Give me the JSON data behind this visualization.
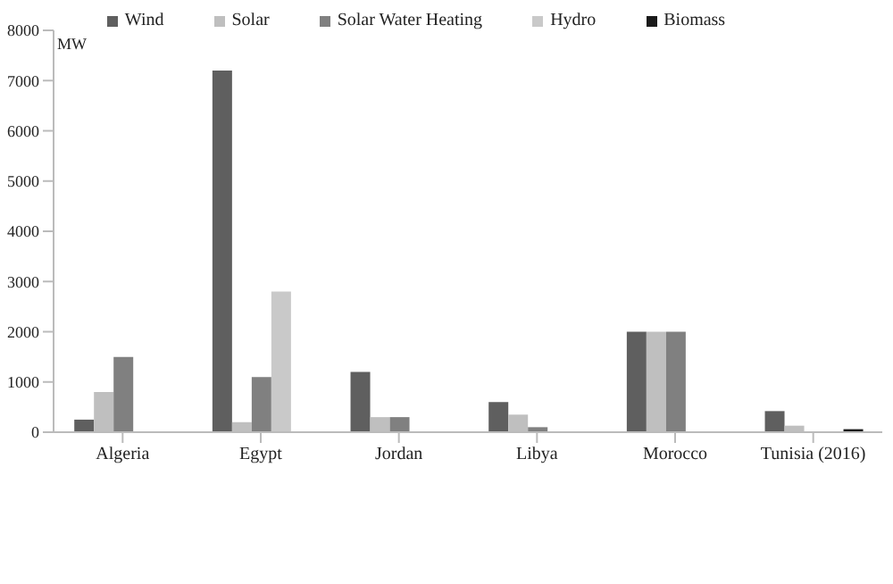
{
  "chart_data": {
    "type": "bar",
    "ylabel": "MW",
    "categories": [
      "Algeria",
      "Egypt",
      "Jordan",
      "Libya",
      "Morocco",
      "Tunisia  (2016)"
    ],
    "series": [
      {
        "name": "Wind",
        "color": "#5f5f5f",
        "values": [
          250,
          7200,
          1200,
          600,
          2000,
          420
        ]
      },
      {
        "name": "Solar",
        "color": "#bfbfbf",
        "values": [
          800,
          200,
          300,
          350,
          2000,
          130
        ]
      },
      {
        "name": "Solar Water Heating",
        "color": "#808080",
        "values": [
          1500,
          1100,
          300,
          100,
          2000,
          null
        ]
      },
      {
        "name": "Hydro",
        "color": "#c9c9c9",
        "values": [
          null,
          2800,
          null,
          null,
          null,
          null
        ]
      },
      {
        "name": "Biomass",
        "color": "#1a1a1a",
        "values": [
          null,
          null,
          null,
          null,
          null,
          60
        ]
      }
    ],
    "ylim": [
      0,
      8000
    ],
    "yticks": [
      0,
      1000,
      2000,
      3000,
      4000,
      5000,
      6000,
      7000,
      8000
    ],
    "grid": false,
    "legend": "top"
  }
}
